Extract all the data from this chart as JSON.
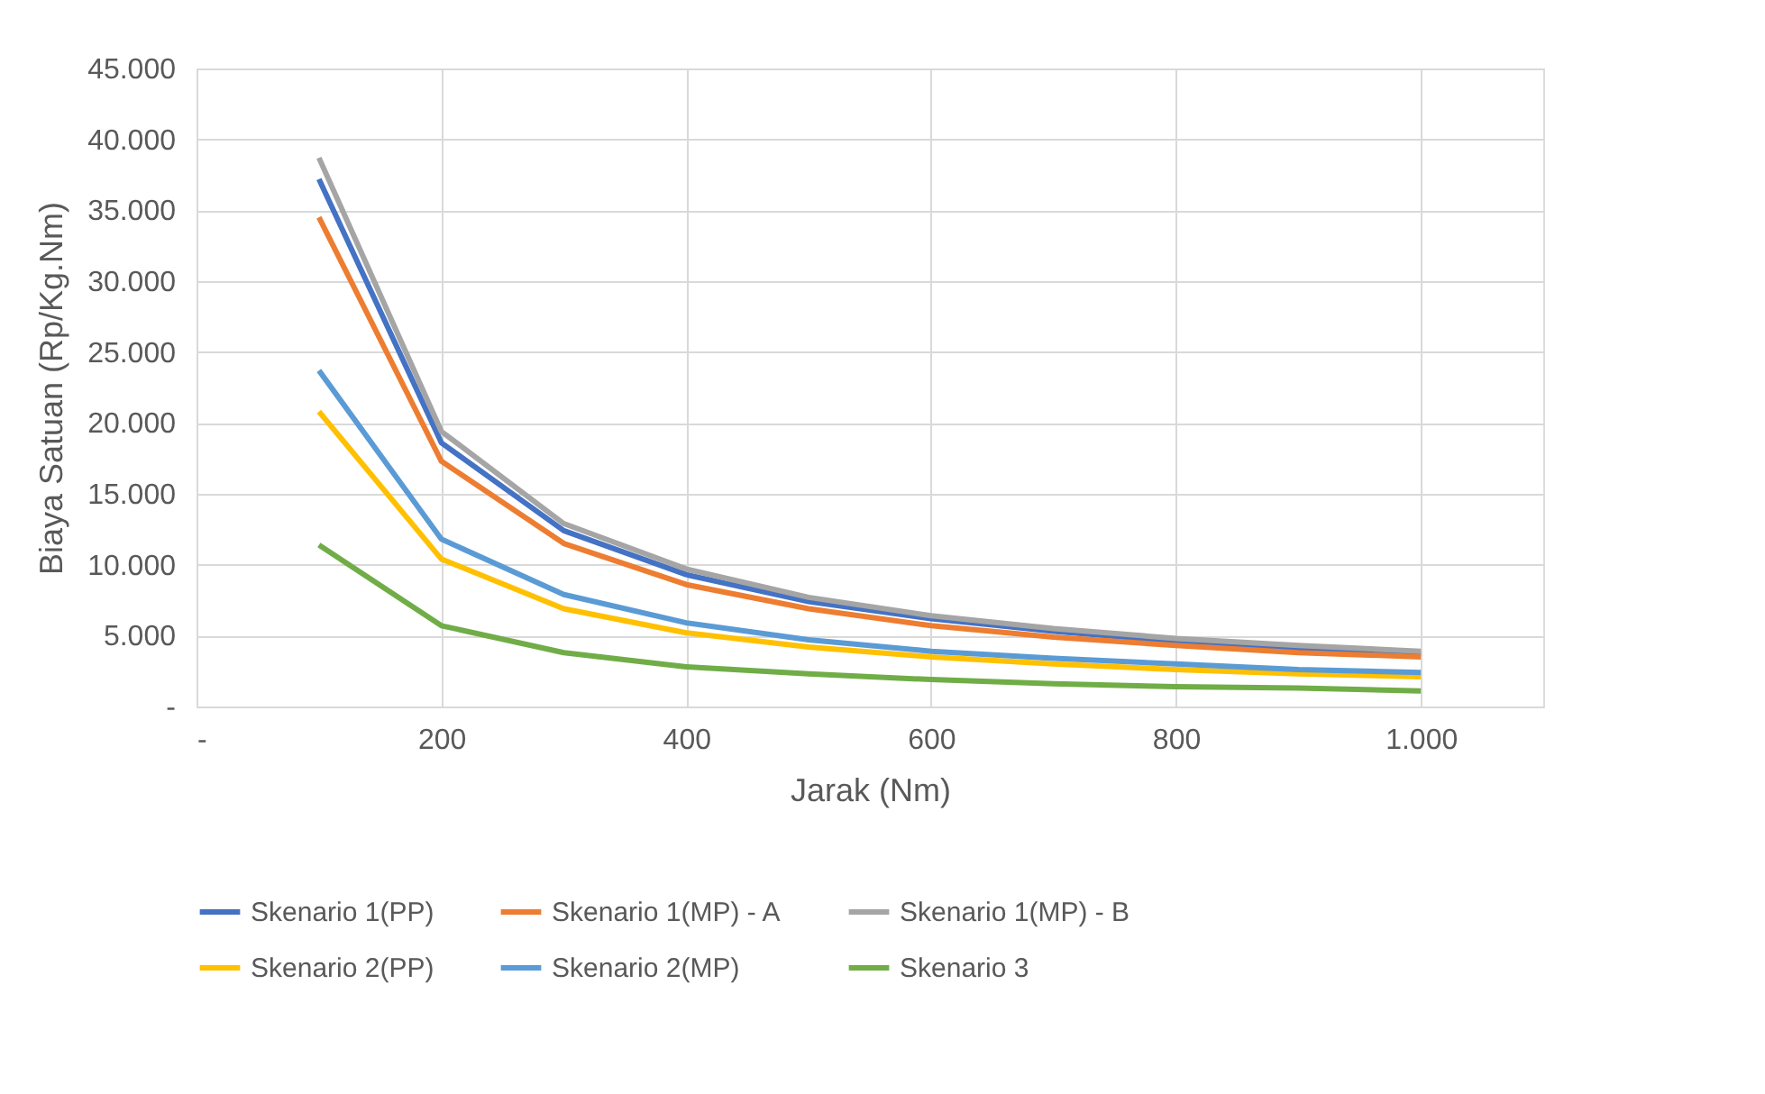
{
  "chart_data": {
    "type": "line",
    "xlabel": "Jarak (Nm)",
    "ylabel": "Biaya Satuan (Rp/Kg.Nm)",
    "x": [
      100,
      200,
      300,
      400,
      500,
      600,
      700,
      800,
      900,
      1000
    ],
    "series": [
      {
        "name": "Skenario 1(PP)",
        "color": "#4472c4",
        "values": [
          37200,
          18600,
          12400,
          9300,
          7400,
          6200,
          5300,
          4600,
          4100,
          3700
        ]
      },
      {
        "name": "Skenario 1(MP) - A",
        "color": "#ed7d31",
        "values": [
          34500,
          17300,
          11500,
          8600,
          6900,
          5700,
          4900,
          4300,
          3800,
          3500
        ]
      },
      {
        "name": "Skenario 1(MP) - B",
        "color": "#a5a5a5",
        "values": [
          38700,
          19400,
          12900,
          9700,
          7700,
          6400,
          5500,
          4800,
          4300,
          3900
        ]
      },
      {
        "name": "Skenario 2(PP)",
        "color": "#ffc000",
        "values": [
          20800,
          10400,
          6900,
          5200,
          4200,
          3500,
          3000,
          2600,
          2300,
          2100
        ]
      },
      {
        "name": "Skenario 2(MP)",
        "color": "#5b9bd5",
        "values": [
          23700,
          11800,
          7900,
          5900,
          4700,
          3900,
          3400,
          3000,
          2600,
          2400
        ]
      },
      {
        "name": "Skenario 3",
        "color": "#70ad47",
        "values": [
          11400,
          5700,
          3800,
          2800,
          2300,
          1900,
          1600,
          1400,
          1300,
          1100
        ]
      }
    ],
    "xlim": [
      0,
      1100
    ],
    "xticks": [
      {
        "value": 0,
        "label": "-"
      },
      200,
      400,
      600,
      800,
      {
        "value": 1000,
        "label": "1.000"
      }
    ],
    "ylim": [
      0,
      45000
    ],
    "yticks": [
      {
        "value": 0,
        "label": "-"
      },
      {
        "value": 5000,
        "label": "5.000"
      },
      {
        "value": 10000,
        "label": "10.000"
      },
      {
        "value": 15000,
        "label": "15.000"
      },
      {
        "value": 20000,
        "label": "20.000"
      },
      {
        "value": 25000,
        "label": "25.000"
      },
      {
        "value": 30000,
        "label": "30.000"
      },
      {
        "value": 35000,
        "label": "35.000"
      },
      {
        "value": 40000,
        "label": "40.000"
      },
      {
        "value": 45000,
        "label": "45.000"
      }
    ],
    "grid": true,
    "legend": "bottom",
    "marker": "none",
    "line_style": "solid"
  }
}
